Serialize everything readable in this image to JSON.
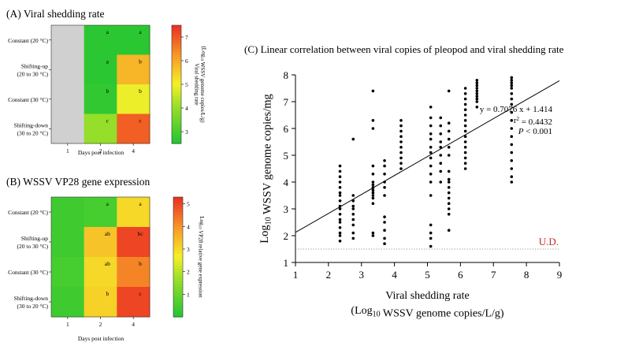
{
  "chart_data": [
    {
      "type": "heatmap",
      "title": "(A) Viral shedding rate",
      "xlabel": "Days post infection",
      "x_categories": [
        "1",
        "2",
        "4"
      ],
      "y_categories": [
        "Constant (20 °C)",
        "Shifting-up (20 to 30 °C)",
        "Constant (30 °C)",
        "Shifting-down (30 to 20 °C)"
      ],
      "y_category_lines": [
        [
          "Constant (20 °C)"
        ],
        [
          "Shifting-up",
          "(20 to 30 °C)"
        ],
        [
          "Constant (30 °C)"
        ],
        [
          "Shifting-down",
          "(30 to 20 °C)"
        ]
      ],
      "values": [
        [
          null,
          2.6,
          2.6
        ],
        [
          null,
          2.6,
          5.8
        ],
        [
          null,
          2.7,
          4.9
        ],
        [
          null,
          4.0,
          6.9
        ]
      ],
      "labels": [
        [
          "",
          "a",
          "a"
        ],
        [
          "",
          "a",
          "b"
        ],
        [
          "",
          "b",
          "b"
        ],
        [
          "",
          "c",
          "c"
        ]
      ],
      "colorbar": {
        "min": 2.5,
        "max": 7.5,
        "ticks": [
          "3",
          "4",
          "5",
          "6",
          "7"
        ],
        "label_lines": [
          "Viral shedding rate",
          "(Log10 WSSV genome copies/L/g)"
        ]
      }
    },
    {
      "type": "heatmap",
      "title": "(B) WSSV VP28 gene expression",
      "xlabel": "Days post infection",
      "x_categories": [
        "1",
        "2",
        "4"
      ],
      "y_categories": [
        "Constant (20 °C)",
        "Shifting-up (20 to 30 °C)",
        "Constant (30 °C)",
        "Shifting-down (30 to 20 °C)"
      ],
      "y_category_lines": [
        [
          "Constant (20 °C)"
        ],
        [
          "Shifting-up",
          "(20 to 30 °C)"
        ],
        [
          "Constant (30 °C)"
        ],
        [
          "Shifting-down",
          "(30 to 20 °C)"
        ]
      ],
      "values": [
        [
          0.4,
          0.5,
          3.0
        ],
        [
          0.4,
          3.3,
          5.0
        ],
        [
          0.5,
          3.0,
          4.2
        ],
        [
          0.4,
          3.1,
          5.0
        ]
      ],
      "labels": [
        [
          "",
          "a",
          "a"
        ],
        [
          "",
          "ab",
          "bc"
        ],
        [
          "",
          "ab",
          "b"
        ],
        [
          "",
          "b",
          "c"
        ]
      ],
      "colorbar": {
        "min": 0,
        "max": 5.3,
        "ticks": [
          "1",
          "2",
          "3",
          "4",
          "5"
        ],
        "label_lines": [
          "Log10 VP28 relative gene expression"
        ]
      }
    },
    {
      "type": "scatter",
      "title": "(C) Linear correlation between viral copies of pleopod and viral shedding rate",
      "xlabel_lines": [
        "Viral shedding rate",
        "(Log10 WSSV genome copies/L/g)"
      ],
      "ylabel": "Log10 WSSV genome copies/mg",
      "xlim": [
        1,
        9
      ],
      "ylim": [
        1,
        8
      ],
      "xticks": [
        "1",
        "2",
        "3",
        "4",
        "5",
        "6",
        "7",
        "8",
        "9"
      ],
      "yticks": [
        "1",
        "2",
        "3",
        "4",
        "5",
        "6",
        "7",
        "8"
      ],
      "regression": {
        "slope": 0.7076,
        "intercept": 1.414
      },
      "annotations": [
        "y = 0.7076 x + 1.414",
        "r2 = 0.4432",
        "P < 0.001"
      ],
      "detection_limit": {
        "y": 1.5,
        "label": "U.D."
      },
      "groups": [
        {
          "x": 2.35,
          "y": [
            1.8,
            2.0,
            2.1,
            2.3,
            2.5,
            2.6,
            2.8,
            3.0,
            3.1,
            3.3,
            3.5,
            3.6,
            3.8,
            4.0,
            4.2,
            4.4,
            4.6
          ]
        },
        {
          "x": 2.75,
          "y": [
            1.9,
            2.1,
            2.4,
            2.6,
            2.8,
            3.0,
            3.1,
            3.3,
            3.5,
            5.6
          ]
        },
        {
          "x": 3.35,
          "y": [
            2.0,
            2.1,
            3.2,
            3.4,
            3.5,
            3.6,
            3.7,
            3.8,
            3.9,
            4.0,
            4.3,
            4.6,
            6.0,
            6.3,
            7.4
          ]
        },
        {
          "x": 3.7,
          "y": [
            1.7,
            1.9,
            2.2,
            2.5,
            2.7,
            3.5,
            3.8,
            4.0,
            4.3,
            4.6,
            4.8
          ]
        },
        {
          "x": 4.2,
          "y": [
            4.5,
            4.7,
            4.9,
            5.1,
            5.3,
            5.5,
            5.7,
            5.9,
            6.1,
            6.3
          ]
        },
        {
          "x": 5.1,
          "y": [
            1.6,
            1.9,
            2.1,
            2.4,
            3.5,
            4.0,
            4.3,
            4.6,
            4.9,
            5.1,
            5.3,
            5.6,
            5.8,
            6.1,
            6.4,
            6.8
          ]
        },
        {
          "x": 5.4,
          "y": [
            4.0,
            4.4,
            4.7,
            5.0,
            5.3,
            5.5,
            5.8,
            6.1,
            6.4
          ]
        },
        {
          "x": 5.65,
          "y": [
            2.2,
            2.8,
            3.0,
            3.2,
            3.4,
            3.6,
            3.8,
            4.0,
            4.1,
            4.4,
            5.0,
            5.3,
            5.6,
            5.9,
            6.2,
            7.4
          ]
        },
        {
          "x": 6.15,
          "y": [
            4.5,
            4.7,
            4.9,
            5.1,
            5.3,
            5.5,
            5.7,
            5.9,
            6.1,
            6.3,
            6.5,
            6.7,
            6.9,
            7.1,
            7.3,
            7.5
          ]
        },
        {
          "x": 6.5,
          "y": [
            6.8,
            7.0,
            7.1,
            7.2,
            7.3,
            7.4,
            7.5,
            7.6,
            7.7,
            7.8
          ]
        },
        {
          "x": 7.55,
          "y": [
            4.0,
            4.2,
            4.5,
            4.8,
            5.1,
            5.4,
            5.7,
            6.0,
            6.3,
            6.6,
            6.9,
            7.1,
            7.3,
            7.5,
            7.6,
            7.7,
            7.8,
            7.9
          ]
        }
      ]
    }
  ]
}
